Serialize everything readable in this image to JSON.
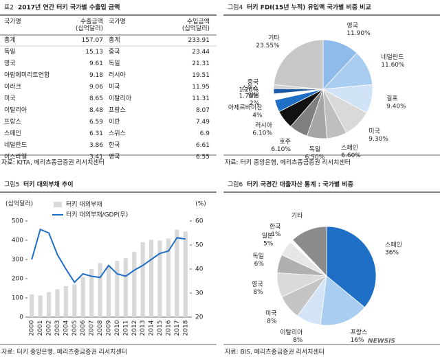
{
  "panels": [
    {
      "tag": "표2",
      "title": "2017년 연간 터키 국가별 수출입 금액",
      "source": "자료: KITA, 메리츠종금증권 리서치센터"
    },
    {
      "tag": "그림4",
      "title": "터키 FDI(15년 누적) 유입액 국가별 비중 비교",
      "source": "자료: 터키 중앙은행, 메리츠종금증권 리서치센터"
    },
    {
      "tag": "그림5",
      "title": "터키 대외부채 추이",
      "source": "자료: 터키 중앙은행, 메리츠종금증권 리서치센터"
    },
    {
      "tag": "그림6",
      "title": "터키 국경간 대출자산 통계 : 국가별 비중",
      "source": "자료: BIS, 메리츠종금증권 리서치센터"
    }
  ],
  "table": {
    "header": [
      "국가명",
      "수출금액\n(십억달러)",
      "국가명",
      "수입금액\n(십억달러)"
    ],
    "rows": [
      [
        "총계",
        157.07,
        "총계",
        233.91
      ],
      [
        "독일",
        15.13,
        "중국",
        23.44
      ],
      [
        "영국",
        9.61,
        "독일",
        21.31
      ],
      [
        "아랍에미리트연합",
        9.18,
        "러시아",
        19.51
      ],
      [
        "이라크",
        9.06,
        "미국",
        11.95
      ],
      [
        "미국",
        8.65,
        "이탈리아",
        11.31
      ],
      [
        "이탈리아",
        8.48,
        "프랑스",
        8.07
      ],
      [
        "프랑스",
        6.59,
        "이란",
        7.49
      ],
      [
        "스페인",
        6.31,
        "스위스",
        6.9
      ],
      [
        "네덜란드",
        3.86,
        "한국",
        6.61
      ],
      [
        "이스라엘",
        3.41,
        "영국",
        6.55
      ]
    ]
  },
  "chart_data": [
    {
      "type": "pie",
      "categories": [
        "영국",
        "네덜란드",
        "걸프",
        "미국",
        "스페인",
        "독일",
        "호주",
        "러시아",
        "아제르바이잔",
        "일본",
        "스위스",
        "중국",
        "기타"
      ],
      "values": [
        11.9,
        11.6,
        9.4,
        9.3,
        6.6,
        6.5,
        6.1,
        6.1,
        4,
        2,
        1.7,
        1.26,
        23.55
      ],
      "value_labels": [
        "11.90%",
        "11.60%",
        "9.40%",
        "9.30%",
        "6.60%",
        "6.50%",
        "6.10%",
        "6.10%",
        "4%",
        "2%",
        "1.70%",
        "1.26%",
        "23.55%"
      ],
      "colors": [
        "#8fbbea",
        "#a9cdf1",
        "#cfe2f6",
        "#d9d9d9",
        "#bfbfbf",
        "#a6a6a6",
        "#7f7f7f",
        "#111111",
        "#1f6fc6",
        "#ffffff",
        "#1a5aa6",
        "#d0d0d0",
        "#c8c8c8"
      ]
    },
    {
      "type": "combo",
      "categories": [
        "2000",
        "2001",
        "2002",
        "2003",
        "2004",
        "2005",
        "2006",
        "2007",
        "2008",
        "2009",
        "2010",
        "2011",
        "2012",
        "2013",
        "2014",
        "2015",
        "2016",
        "2017",
        "2018"
      ],
      "y_label": "(십억달러)",
      "y2_label": "(%)",
      "ylim": [
        0,
        500
      ],
      "yticks": [
        0,
        100,
        200,
        300,
        400,
        500
      ],
      "y2lim": [
        20,
        60
      ],
      "y2ticks": [
        20,
        30,
        40,
        50,
        60
      ],
      "series": [
        {
          "name": "터키 대외부채",
          "type": "bar",
          "color": "#d9d9d9",
          "values": [
            118,
            113,
            130,
            145,
            161,
            170,
            208,
            250,
            281,
            269,
            292,
            306,
            339,
            390,
            402,
            398,
            409,
            455,
            445
          ]
        },
        {
          "name": "터키 대외부채/GDP(우)",
          "type": "line",
          "axis": "y2",
          "color": "#1f6fc6",
          "values": [
            44,
            56.5,
            55,
            46,
            40,
            34.5,
            38,
            37,
            36.5,
            41.5,
            38,
            37,
            39.5,
            41.5,
            44,
            46.5,
            47.5,
            53,
            52.5
          ]
        }
      ]
    },
    {
      "type": "pie",
      "categories": [
        "스페인",
        "프랑스",
        "이탈리아",
        "미국",
        "영국",
        "독일",
        "일본",
        "한국",
        "기타"
      ],
      "values": [
        36,
        16,
        8,
        8,
        8,
        6,
        5,
        1,
        12
      ],
      "value_labels": [
        "36%",
        "16%",
        "8%",
        "8%",
        "8%",
        "6%",
        "5%",
        "1%",
        null
      ],
      "colors": [
        "#1f6fc6",
        "#a9cdf1",
        "#d3e4f7",
        "#c4c4c4",
        "#dadada",
        "#b0b0b0",
        "#e6e6e6",
        "#ffffff",
        "#8c8c8c"
      ]
    }
  ],
  "watermark": "NEWSIS"
}
